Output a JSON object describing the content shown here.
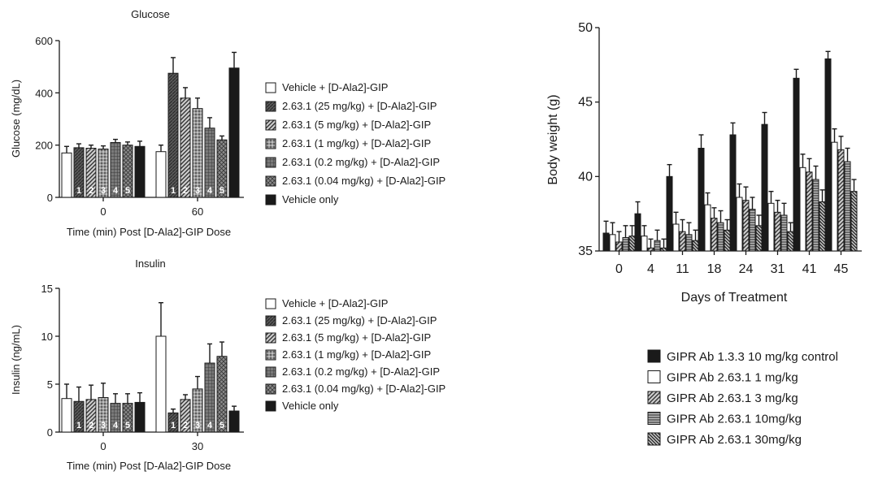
{
  "chart_data": [
    {
      "type": "bar",
      "title": "Glucose",
      "ylabel": "Glucose (mg/dL)",
      "xlabel": "Time (min) Post [D-Ala2]-GIP Dose",
      "ylim": [
        0,
        600
      ],
      "yticks": [
        "0",
        "200",
        "400",
        "600"
      ],
      "categories": [
        "0",
        "60"
      ],
      "bar_numbers": [
        "1",
        "2",
        "3",
        "4",
        "5"
      ],
      "series": [
        {
          "name": "Vehicle + [D-Ala2]-GIP",
          "pattern": "white",
          "values": [
            170,
            175
          ],
          "errors": [
            25,
            25
          ]
        },
        {
          "name": "2.63.1 (25 mg/kg) + [D-Ala2]-GIP",
          "pattern": "dark",
          "values": [
            190,
            475
          ],
          "errors": [
            15,
            60
          ]
        },
        {
          "name": "2.63.1 (5 mg/kg) + [D-Ala2]-GIP",
          "pattern": "hatch",
          "values": [
            188,
            380
          ],
          "errors": [
            12,
            40
          ]
        },
        {
          "name": "2.63.1 (1 mg/kg) + [D-Ala2]-GIP",
          "pattern": "dots",
          "values": [
            185,
            340
          ],
          "errors": [
            12,
            40
          ]
        },
        {
          "name": "2.63.1 (0.2 mg/kg) + [D-Ala2]-GIP",
          "pattern": "grid",
          "values": [
            210,
            265
          ],
          "errors": [
            12,
            40
          ]
        },
        {
          "name": "2.63.1 (0.04 mg/kg) + [D-Ala2]-GIP",
          "pattern": "cross",
          "values": [
            200,
            220
          ],
          "errors": [
            12,
            15
          ]
        },
        {
          "name": "Vehicle only",
          "pattern": "black",
          "values": [
            195,
            495
          ],
          "errors": [
            20,
            60
          ]
        }
      ]
    },
    {
      "type": "bar",
      "title": "Insulin",
      "ylabel": "Insulin (ng/mL)",
      "xlabel": "Time (min) Post [D-Ala2]-GIP Dose",
      "ylim": [
        0,
        15
      ],
      "yticks": [
        "0",
        "5",
        "10",
        "15"
      ],
      "categories": [
        "0",
        "30"
      ],
      "bar_numbers": [
        "1",
        "2",
        "3",
        "4",
        "5"
      ],
      "series": [
        {
          "name": "Vehicle + [D-Ala2]-GIP",
          "pattern": "white",
          "values": [
            3.5,
            10.0
          ],
          "errors": [
            1.5,
            3.5
          ]
        },
        {
          "name": "2.63.1 (25 mg/kg) + [D-Ala2]-GIP",
          "pattern": "dark",
          "values": [
            3.2,
            2.0
          ],
          "errors": [
            1.5,
            0.4
          ]
        },
        {
          "name": "2.63.1 (5 mg/kg) + [D-Ala2]-GIP",
          "pattern": "hatch",
          "values": [
            3.4,
            3.4
          ],
          "errors": [
            1.5,
            0.5
          ]
        },
        {
          "name": "2.63.1 (1 mg/kg) + [D-Ala2]-GIP",
          "pattern": "dots",
          "values": [
            3.6,
            4.5
          ],
          "errors": [
            1.5,
            1.3
          ]
        },
        {
          "name": "2.63.1 (0.2 mg/kg) + [D-Ala2]-GIP",
          "pattern": "grid",
          "values": [
            3.0,
            7.2
          ],
          "errors": [
            1.0,
            2.0
          ]
        },
        {
          "name": "2.63.1 (0.04 mg/kg) + [D-Ala2]-GIP",
          "pattern": "cross",
          "values": [
            3.0,
            7.9
          ],
          "errors": [
            1.0,
            1.5
          ]
        },
        {
          "name": "Vehicle only",
          "pattern": "black",
          "values": [
            3.1,
            2.2
          ],
          "errors": [
            1.0,
            0.5
          ]
        }
      ]
    },
    {
      "type": "bar",
      "title": "",
      "ylabel": "Body weight (g)",
      "xlabel": "Days of Treatment",
      "ylim": [
        35,
        50
      ],
      "yticks": [
        "35",
        "40",
        "45",
        "50"
      ],
      "categories": [
        "0",
        "4",
        "11",
        "18",
        "24",
        "31",
        "41",
        "45"
      ],
      "series": [
        {
          "name": "GIPR Ab 1.3.3 10 mg/kg control",
          "pattern": "black",
          "values": [
            36.2,
            37.5,
            40.0,
            41.9,
            42.8,
            43.5,
            46.6,
            47.9
          ],
          "errors": [
            0.8,
            0.8,
            0.8,
            0.9,
            0.8,
            0.8,
            0.6,
            0.5
          ]
        },
        {
          "name": "GIPR Ab 2.63.1 1 mg/kg",
          "pattern": "white",
          "values": [
            36.1,
            36.0,
            36.8,
            38.1,
            38.6,
            38.2,
            40.6,
            42.3
          ],
          "errors": [
            0.8,
            0.7,
            0.8,
            0.8,
            0.9,
            0.8,
            0.9,
            0.9
          ]
        },
        {
          "name": "GIPR Ab 2.63.1 3 mg/kg",
          "pattern": "hatch",
          "values": [
            35.6,
            35.2,
            36.3,
            37.2,
            38.4,
            37.6,
            40.3,
            41.8
          ],
          "errors": [
            0.7,
            0.6,
            0.8,
            0.7,
            0.9,
            0.8,
            0.9,
            0.9
          ]
        },
        {
          "name": "GIPR Ab 2.63.1 10mg/kg",
          "pattern": "hlines",
          "values": [
            35.9,
            35.7,
            36.1,
            36.9,
            37.8,
            37.4,
            39.8,
            41.0
          ],
          "errors": [
            0.8,
            0.7,
            0.8,
            0.8,
            0.8,
            0.8,
            0.9,
            0.9
          ]
        },
        {
          "name": "GIPR Ab 2.63.1 30mg/kg",
          "pattern": "dhatch",
          "values": [
            36.0,
            35.2,
            35.7,
            36.4,
            36.7,
            36.3,
            38.3,
            39.0
          ],
          "errors": [
            0.7,
            0.6,
            0.7,
            0.7,
            0.7,
            0.6,
            0.8,
            0.8
          ]
        }
      ]
    }
  ]
}
